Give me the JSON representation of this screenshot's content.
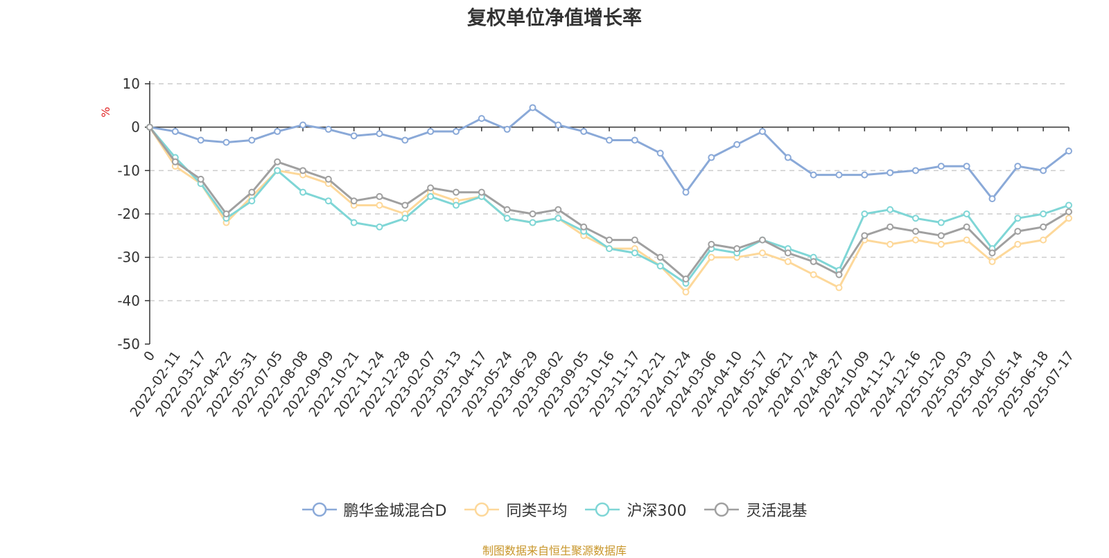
{
  "title": "复权单位净值增长率",
  "source_note": "制图数据来自恒生聚源数据库",
  "chart_data": {
    "type": "line",
    "title": "复权单位净值增长率",
    "ylabel": "%",
    "ylim": [
      -50,
      10
    ],
    "yticks": [
      10,
      0,
      -10,
      -20,
      -30,
      -40,
      -50
    ],
    "grid": true,
    "legend_position": "bottom",
    "x_tick_labels": [
      "0",
      "2022-02-11",
      "2022-03-17",
      "2022-04-22",
      "2022-05-31",
      "2022-07-05",
      "2022-08-08",
      "2022-09-09",
      "2022-10-21",
      "2022-11-24",
      "2022-12-28",
      "2023-02-07",
      "2023-03-13",
      "2023-04-17",
      "2023-05-24",
      "2023-06-29",
      "2023-08-02",
      "2023-09-05",
      "2023-10-16",
      "2023-11-17",
      "2023-12-21",
      "2024-01-24",
      "2024-03-06",
      "2024-04-10",
      "2024-05-17",
      "2024-06-21",
      "2024-07-24",
      "2024-08-27",
      "2024-10-09",
      "2024-11-12",
      "2024-12-16",
      "2025-01-20",
      "2025-03-03",
      "2025-04-07",
      "2025-05-14",
      "2025-06-18",
      "2025-07-17"
    ],
    "series": [
      {
        "name": "鹏华金城混合D",
        "color": "#8aa9d8",
        "values": [
          0,
          -1,
          -3,
          -3.5,
          -3,
          -1,
          0.5,
          -0.5,
          -2,
          -1.5,
          -3,
          -1,
          -1,
          2,
          -0.5,
          4.5,
          0.5,
          -1,
          -3,
          -3,
          -6,
          -15,
          -7,
          -4,
          -1,
          -7,
          -11,
          -11,
          -11,
          -10.5,
          -10,
          -9,
          -9,
          -16.5,
          -9,
          -10,
          -5.5
        ]
      },
      {
        "name": "同类平均",
        "color": "#fdd89a",
        "values": [
          0,
          -9,
          -13,
          -22,
          -16,
          -10,
          -11,
          -13,
          -18,
          -18,
          -20,
          -15,
          -17,
          -16,
          -21,
          -22,
          -21,
          -25,
          -28,
          -28,
          -32,
          -38,
          -30,
          -30,
          -29,
          -31,
          -34,
          -37,
          -26,
          -27,
          -26,
          -27,
          -26,
          -31,
          -27,
          -26,
          -21
        ]
      },
      {
        "name": "沪深300",
        "color": "#7fd6d6",
        "values": [
          0,
          -7,
          -13,
          -21,
          -17,
          -10,
          -15,
          -17,
          -22,
          -23,
          -21,
          -16,
          -18,
          -16,
          -21,
          -22,
          -21,
          -24,
          -28,
          -29,
          -32,
          -36,
          -28,
          -29,
          -26,
          -28,
          -30,
          -33,
          -20,
          -19,
          -21,
          -22,
          -20,
          -28,
          -21,
          -20,
          -18
        ]
      },
      {
        "name": "灵活混基",
        "color": "#a0a0a0",
        "values": [
          0,
          -8,
          -12,
          -20,
          -15,
          -8,
          -10,
          -12,
          -17,
          -16,
          -18,
          -14,
          -15,
          -15,
          -19,
          -20,
          -19,
          -23,
          -26,
          -26,
          -30,
          -35,
          -27,
          -28,
          -26,
          -29,
          -31,
          -34,
          -25,
          -23,
          -24,
          -25,
          -23,
          -29,
          -24,
          -23,
          -19.5
        ]
      }
    ]
  }
}
